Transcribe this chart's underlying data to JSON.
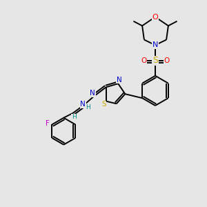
{
  "background_color": "#e6e6e6",
  "figsize": [
    3.0,
    3.0
  ],
  "dpi": 100,
  "bond_color": "#000000",
  "atom_colors": {
    "O": "#ff0000",
    "N": "#0000cc",
    "S_sulfonyl": "#ccaa00",
    "S_thiazole": "#ccaa00",
    "F": "#cc00cc",
    "H": "#008888",
    "C": "#000000"
  },
  "lw": 1.4
}
